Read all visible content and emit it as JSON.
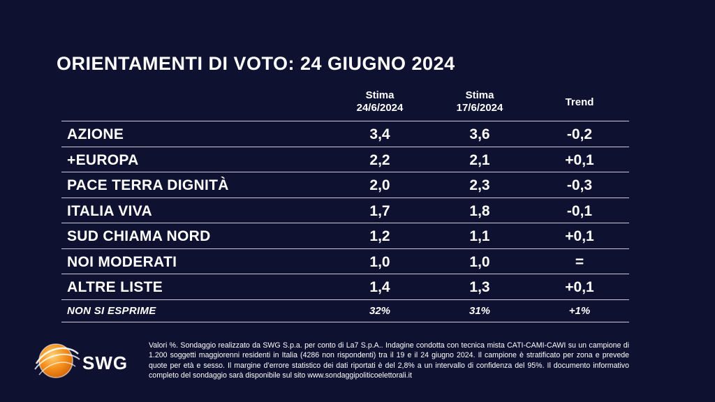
{
  "title": "ORIENTAMENTI DI VOTO: 24 GIUGNO 2024",
  "columns": {
    "current": [
      "Stima",
      "24/6/2024"
    ],
    "previous": [
      "Stima",
      "17/6/2024"
    ],
    "trend": "Trend"
  },
  "chart_data": {
    "type": "table",
    "title": "ORIENTAMENTI DI VOTO: 24 GIUGNO 2024",
    "columns": [
      "Stima 24/6/2024",
      "Stima 17/6/2024",
      "Trend"
    ],
    "rows": [
      {
        "label": "AZIONE",
        "current": "3,4",
        "previous": "3,6",
        "trend": "-0,2"
      },
      {
        "label": "+EUROPA",
        "current": "2,2",
        "previous": "2,1",
        "trend": "+0,1"
      },
      {
        "label": "PACE TERRA DIGNITÀ",
        "current": "2,0",
        "previous": "2,3",
        "trend": "-0,3"
      },
      {
        "label": "ITALIA VIVA",
        "current": "1,7",
        "previous": "1,8",
        "trend": "-0,1"
      },
      {
        "label": "SUD CHIAMA NORD",
        "current": "1,2",
        "previous": "1,1",
        "trend": "+0,1"
      },
      {
        "label": "NOI MODERATI",
        "current": "1,0",
        "previous": "1,0",
        "trend": "="
      },
      {
        "label": "ALTRE LISTE",
        "current": "1,4",
        "previous": "1,3",
        "trend": "+0,1"
      }
    ],
    "summary_row": {
      "label": "NON SI ESPRIME",
      "current": "32%",
      "previous": "31%",
      "trend": "+1%"
    }
  },
  "logo": {
    "text": "SWG",
    "colors": [
      "#f7931e",
      "#ffffff"
    ]
  },
  "footnote": "Valori %. Sondaggio realizzato da SWG S.p.a. per conto di La7 S.p.A.. Indagine condotta con tecnica mista CATI-CAMI-CAWI su un campione di 1.200 soggetti maggiorenni residenti in Italia (4286 non rispondenti) tra il 19 e il 24 giugno 2024. Il campione è stratificato per zona e prevede quote per età e sesso. Il margine d’errore statistico dei dati riportati è del 2,8% a un intervallo di confidenza del 95%. Il documento informativo completo del sondaggio sarà disponibile sul sito www.sondaggipoliticoelettorali.it"
}
